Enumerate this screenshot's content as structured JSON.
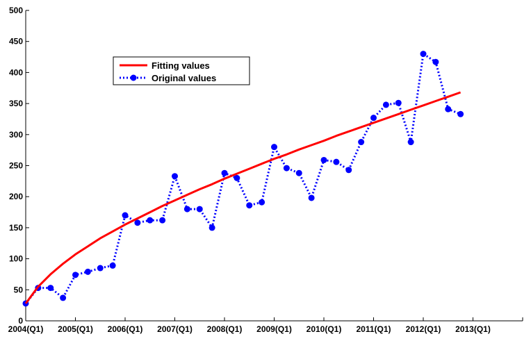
{
  "chart_data": {
    "type": "line",
    "title": "",
    "xlabel": "",
    "ylabel": "",
    "x_tick_labels": [
      "2004(Q1)",
      "2005(Q1)",
      "2006(Q1)",
      "2007(Q1)",
      "2008(Q1)",
      "2009(Q1)",
      "2010(Q1)",
      "2011(Q1)",
      "2012(Q1)",
      "2013(Q1)"
    ],
    "xlim": [
      0,
      40
    ],
    "ylim": [
      0,
      500
    ],
    "y_ticks": [
      0,
      50,
      100,
      150,
      200,
      250,
      300,
      350,
      400,
      450,
      500
    ],
    "grid": false,
    "legend_position": "upper-left",
    "series": [
      {
        "name": "Fitting values",
        "style": "solid",
        "color": "#ff0000",
        "x": [
          0,
          1,
          2,
          3,
          4,
          5,
          6,
          7,
          8,
          9,
          10,
          11,
          12,
          13,
          14,
          15,
          16,
          17,
          18,
          19,
          20,
          21,
          22,
          23,
          24,
          25,
          26,
          27,
          28,
          29,
          30,
          31,
          32,
          33,
          34,
          35
        ],
        "values": [
          28,
          55,
          75,
          92,
          107,
          120,
          133,
          144,
          155,
          165,
          175,
          185,
          194,
          203,
          212,
          220,
          229,
          237,
          245,
          253,
          261,
          268,
          276,
          283,
          290,
          298,
          305,
          312,
          319,
          326,
          333,
          340,
          347,
          354,
          361,
          368
        ]
      },
      {
        "name": "Original values",
        "style": "dotted-markers",
        "color": "#0000ff",
        "x": [
          0,
          1,
          2,
          3,
          4,
          5,
          6,
          7,
          8,
          9,
          10,
          11,
          12,
          13,
          14,
          15,
          16,
          17,
          18,
          19,
          20,
          21,
          22,
          23,
          24,
          25,
          26,
          27,
          28,
          29,
          30,
          31,
          32,
          33,
          34,
          35
        ],
        "values": [
          28,
          53,
          53,
          37,
          74,
          79,
          85,
          89,
          170,
          158,
          162,
          162,
          233,
          180,
          180,
          150,
          238,
          230,
          186,
          191,
          280,
          246,
          238,
          198,
          259,
          256,
          243,
          288,
          327,
          348,
          351,
          288,
          430,
          417,
          341,
          333
        ]
      }
    ]
  }
}
